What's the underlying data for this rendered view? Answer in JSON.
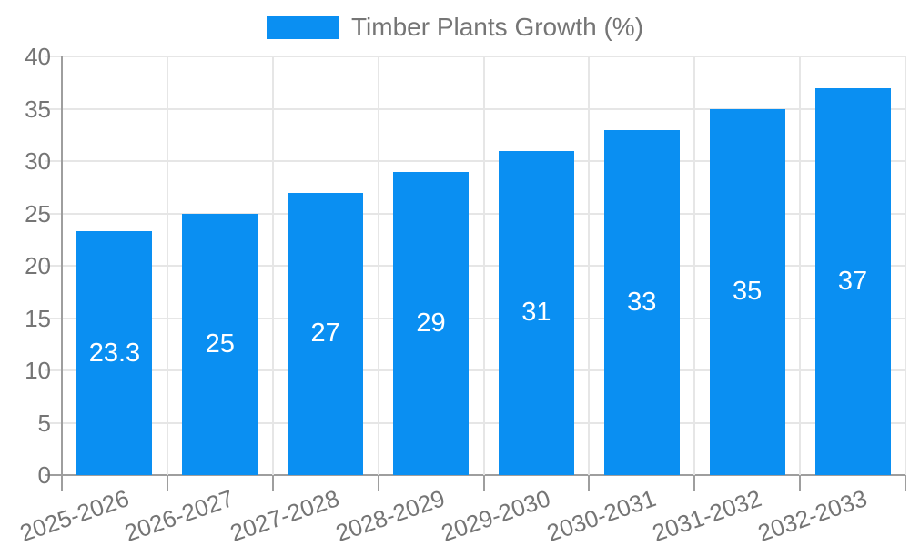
{
  "legend": {
    "label": "Timber Plants Growth (%)"
  },
  "colors": {
    "bar": "#0a8ff2",
    "axis_text": "#757575",
    "value_label": "#ffffff",
    "gridline": "#e6e6e6",
    "axis_line": "#9e9e9e",
    "background": "#ffffff"
  },
  "chart_data": {
    "type": "bar",
    "title": "Timber Plants Growth (%)",
    "categories": [
      "2025-2026",
      "2026-2027",
      "2027-2028",
      "2028-2029",
      "2029-2030",
      "2030-2031",
      "2031-2032",
      "2032-2033"
    ],
    "values": [
      23.3,
      25,
      27,
      29,
      31,
      33,
      35,
      37
    ],
    "series": [
      {
        "name": "Timber Plants Growth (%)",
        "values": [
          23.3,
          25,
          27,
          29,
          31,
          33,
          35,
          37
        ]
      }
    ],
    "value_labels": [
      "23.3",
      "25",
      "27",
      "29",
      "31",
      "33",
      "35",
      "37"
    ],
    "value_label_position": "inside-center",
    "xlabel": "",
    "ylabel": "",
    "ylim": [
      0,
      40
    ],
    "yticks": [
      0,
      5,
      10,
      15,
      20,
      25,
      30,
      35,
      40
    ],
    "grid": true,
    "legend_position": "top",
    "x_tick_rotation_deg": -19
  }
}
